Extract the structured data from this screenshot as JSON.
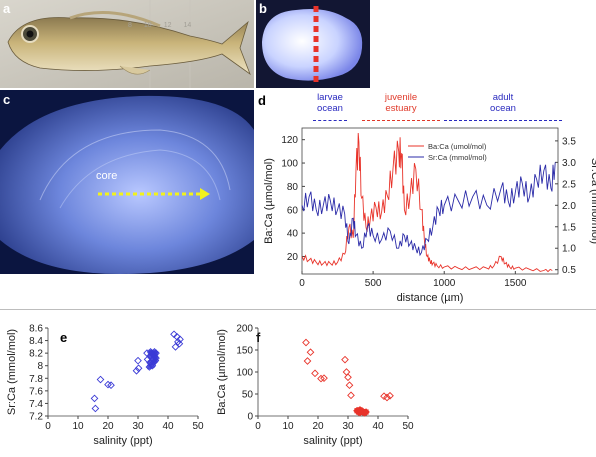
{
  "panels": {
    "a": {
      "label": "a"
    },
    "b": {
      "label": "b"
    },
    "c": {
      "label": "c",
      "core_label": "core"
    },
    "d": {
      "label": "d"
    },
    "e": {
      "label": "e"
    },
    "f": {
      "label": "f"
    }
  },
  "ruler_marks": [
    "8",
    "10",
    "12",
    "14"
  ],
  "stages": [
    {
      "name": "larvae\nocean",
      "color": "#2a2abf",
      "line_color": "#2a2abf"
    },
    {
      "name": "juvenile\nestuary",
      "color": "#e03a2a",
      "line_color": "#e03a2a"
    },
    {
      "name": "adult\nocean",
      "color": "#2a2abf",
      "line_color": "#2a2abf"
    }
  ],
  "colors": {
    "barium": "#e8332a",
    "strontium": "#2b2ba8",
    "sr_markers": "#3b3bd6",
    "ba_markers": "#e8332a"
  },
  "chart_data": [
    {
      "type": "line",
      "panel": "d",
      "xlabel": "distance (µm)",
      "ylabel_left": "Ba:Ca (µmol/mol)",
      "ylabel_right": "Sr:Ca (mmol/mol)",
      "xlim": [
        0,
        1800
      ],
      "ylim_left": [
        5,
        130
      ],
      "ylim_right": [
        0.4,
        3.8
      ],
      "xticks": [
        0,
        500,
        1000,
        1500
      ],
      "yticks_left": [
        20,
        40,
        60,
        80,
        100,
        120
      ],
      "yticks_right": [
        "0.5",
        "1.0",
        "1.5",
        "2.0",
        "2.5",
        "3.0",
        "3.5"
      ],
      "legend": "top-right",
      "series": [
        {
          "name": "Ba:Ca (umol/mol)",
          "axis": "left",
          "x": [
            0,
            50,
            100,
            150,
            200,
            250,
            300,
            330,
            360,
            380,
            400,
            420,
            450,
            480,
            520,
            560,
            600,
            640,
            680,
            700,
            720,
            760,
            800,
            840,
            860,
            880,
            900,
            920,
            950,
            1000,
            1100,
            1200,
            1300,
            1350,
            1400,
            1430,
            1460,
            1500,
            1600,
            1700,
            1760
          ],
          "y": [
            20,
            17,
            15,
            14,
            14,
            15,
            22,
            45,
            36,
            95,
            118,
            70,
            45,
            52,
            62,
            58,
            72,
            95,
            110,
            108,
            60,
            72,
            95,
            60,
            35,
            20,
            16,
            14,
            12,
            11,
            10,
            10,
            10,
            12,
            20,
            14,
            11,
            10,
            9,
            8,
            8
          ]
        },
        {
          "name": "Sr:Ca (mmol/mol)",
          "axis": "right",
          "x": [
            0,
            50,
            100,
            150,
            200,
            250,
            300,
            330,
            360,
            380,
            420,
            460,
            500,
            560,
            620,
            680,
            720,
            760,
            800,
            840,
            880,
            920,
            960,
            1000,
            1100,
            1200,
            1300,
            1400,
            1450,
            1500,
            1550,
            1600,
            1650,
            1700,
            1750,
            1780
          ],
          "y": [
            2.0,
            2.2,
            1.9,
            2.0,
            2.1,
            1.9,
            1.8,
            1.1,
            1.7,
            1.3,
            1.0,
            1.5,
            1.3,
            1.2,
            1.4,
            1.0,
            1.3,
            1.1,
            1.0,
            0.9,
            1.2,
            1.5,
            1.9,
            2.0,
            2.1,
            2.2,
            2.0,
            2.4,
            2.1,
            2.3,
            2.5,
            2.2,
            2.6,
            2.8,
            2.4,
            3.0
          ]
        }
      ]
    },
    {
      "type": "scatter",
      "panel": "e",
      "xlabel": "salinity (ppt)",
      "ylabel": "Sr:Ca (mmol/mol)",
      "xlim": [
        0,
        50
      ],
      "ylim": [
        7.2,
        8.6
      ],
      "xticks": [
        0,
        10,
        20,
        30,
        40,
        50
      ],
      "yticks": [
        "7.2",
        "7.4",
        "7.6",
        "7.8",
        "8",
        "8.2",
        "8.4",
        "8.6"
      ],
      "points_x": [
        15.5,
        15.8,
        17.5,
        20,
        21,
        29.5,
        30,
        30.2,
        33,
        33.2,
        34,
        34,
        34.5,
        35,
        35,
        35.2,
        35.5,
        35.5,
        36,
        36,
        33.8,
        34.2,
        34.8,
        35.8,
        42,
        42.5,
        43,
        43.3,
        43.8,
        44
      ],
      "points_y": [
        7.48,
        7.32,
        7.78,
        7.7,
        7.69,
        7.92,
        8.08,
        7.96,
        8.2,
        8.1,
        8.05,
        8.15,
        8.2,
        8.1,
        8.18,
        8.05,
        8.15,
        8.22,
        8.2,
        8.12,
        7.98,
        8.22,
        8.0,
        8.08,
        8.5,
        8.3,
        8.46,
        8.38,
        8.35,
        8.42
      ]
    },
    {
      "type": "scatter",
      "panel": "f",
      "xlabel": "salinity (ppt)",
      "ylabel": "Ba:Ca (µmol/mol)",
      "xlim": [
        0,
        50
      ],
      "ylim": [
        0,
        200
      ],
      "xticks": [
        0,
        10,
        20,
        30,
        40,
        50
      ],
      "yticks": [
        0,
        50,
        100,
        150,
        200
      ],
      "points_x": [
        16,
        16.5,
        17.5,
        19,
        21,
        22,
        29,
        29.5,
        30,
        30.5,
        31,
        33,
        33.5,
        34,
        34,
        34.5,
        35,
        35.5,
        36,
        42,
        43,
        44
      ],
      "points_y": [
        167,
        125,
        145,
        97,
        85,
        86,
        128,
        100,
        88,
        70,
        47,
        12,
        9,
        14,
        8,
        11,
        10,
        7,
        9,
        45,
        42,
        46
      ]
    }
  ]
}
